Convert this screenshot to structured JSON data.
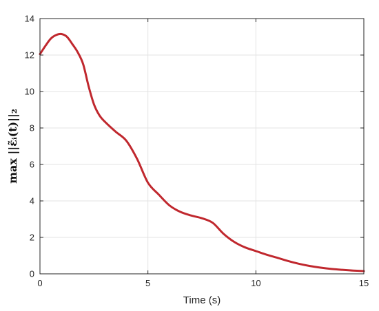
{
  "chart_data": {
    "type": "line",
    "xlabel": "Time (s)",
    "ylabel": "max ||ε̃ᵢ(t)||₂",
    "xlim": [
      0,
      15
    ],
    "ylim": [
      0,
      14
    ],
    "xticks": [
      0,
      5,
      10,
      15
    ],
    "yticks": [
      0,
      2,
      4,
      6,
      8,
      10,
      12,
      14
    ],
    "grid": true,
    "line_color": "#c0282e",
    "series": [
      {
        "x": [
          0,
          0.25,
          0.5,
          0.75,
          1.0,
          1.25,
          1.5,
          1.75,
          2.0,
          2.25,
          2.5,
          2.75,
          3.0,
          3.5,
          4.0,
          4.5,
          5.0,
          5.5,
          6.0,
          6.5,
          7.0,
          7.5,
          8.0,
          8.5,
          9.0,
          9.5,
          10.0,
          10.5,
          11.0,
          11.5,
          12.0,
          12.5,
          13.0,
          13.5,
          14.0,
          14.5,
          15.0
        ],
        "y": [
          12.05,
          12.5,
          12.9,
          13.1,
          13.15,
          13.0,
          12.6,
          12.15,
          11.5,
          10.3,
          9.3,
          8.7,
          8.35,
          7.8,
          7.3,
          6.3,
          5.0,
          4.35,
          3.75,
          3.4,
          3.2,
          3.05,
          2.8,
          2.2,
          1.75,
          1.45,
          1.25,
          1.05,
          0.88,
          0.7,
          0.55,
          0.43,
          0.34,
          0.27,
          0.22,
          0.18,
          0.15
        ]
      }
    ]
  }
}
